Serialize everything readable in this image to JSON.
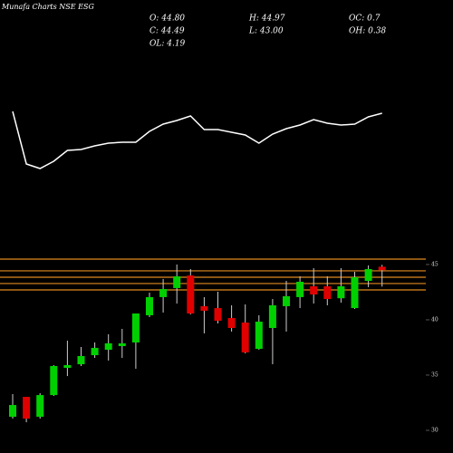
{
  "chart_data": {
    "type": "candlestick",
    "title": "Munafa Charts NSE ESG",
    "stats": [
      [
        "O: 44.80",
        "H: 44.97",
        "OC: 0.7"
      ],
      [
        "C: 44.49",
        "L: 43.00",
        "OH: 0.38"
      ],
      [
        "OL: 4.19"
      ]
    ],
    "open": [
      31.23,
      33.03,
      31.23,
      33.19,
      35.65,
      35.98,
      36.8,
      37.29,
      37.62,
      37.95,
      40.41,
      42.05,
      42.87,
      44.01,
      41.23,
      41.06,
      40.16,
      39.75,
      37.37,
      39.26,
      41.23,
      42.05,
      43.03,
      43.03,
      41.95,
      41.06,
      43.52,
      44.8
    ],
    "close": [
      32.29,
      31.06,
      33.19,
      35.82,
      35.9,
      36.72,
      37.46,
      37.87,
      37.87,
      40.57,
      42.05,
      42.78,
      43.93,
      40.57,
      40.82,
      39.91,
      39.26,
      37.05,
      39.83,
      41.31,
      42.13,
      43.44,
      42.29,
      41.88,
      43.03,
      43.85,
      44.59,
      44.49
    ],
    "high": [
      33.28,
      33.03,
      33.36,
      35.9,
      38.11,
      37.54,
      37.95,
      38.69,
      39.18,
      40.57,
      42.46,
      43.69,
      45,
      44.59,
      42.05,
      42.54,
      41.31,
      41.39,
      40.41,
      41.88,
      43.52,
      43.93,
      44.67,
      43.93,
      44.67,
      44.34,
      44.92,
      44.97
    ],
    "low": [
      31.06,
      30.73,
      31.06,
      33.11,
      34.91,
      35.82,
      36.55,
      36.31,
      36.55,
      35.57,
      40.24,
      40.65,
      41.47,
      40.49,
      38.77,
      39.67,
      38.93,
      36.96,
      37.29,
      35.98,
      38.93,
      41.06,
      41.47,
      41.31,
      41.55,
      40.98,
      42.95,
      43
    ],
    "up_color": "#00d000",
    "down_color": "#e00000",
    "ylim": [
      27.95,
      46.8
    ],
    "yticks": [
      30,
      35,
      40,
      45
    ],
    "levels": [
      45.49,
      44.43,
      43.85,
      43.28,
      42.7
    ],
    "level_color": "#e08a1e",
    "indicator": {
      "values": [
        77,
        19,
        14,
        22,
        34,
        35,
        39,
        42,
        43,
        43,
        55,
        63,
        67,
        72,
        57,
        57,
        54,
        51,
        42,
        52,
        58,
        62,
        68,
        64,
        62,
        63,
        71,
        75
      ],
      "ylim": [
        0,
        100
      ],
      "color": "#ffffff"
    }
  }
}
